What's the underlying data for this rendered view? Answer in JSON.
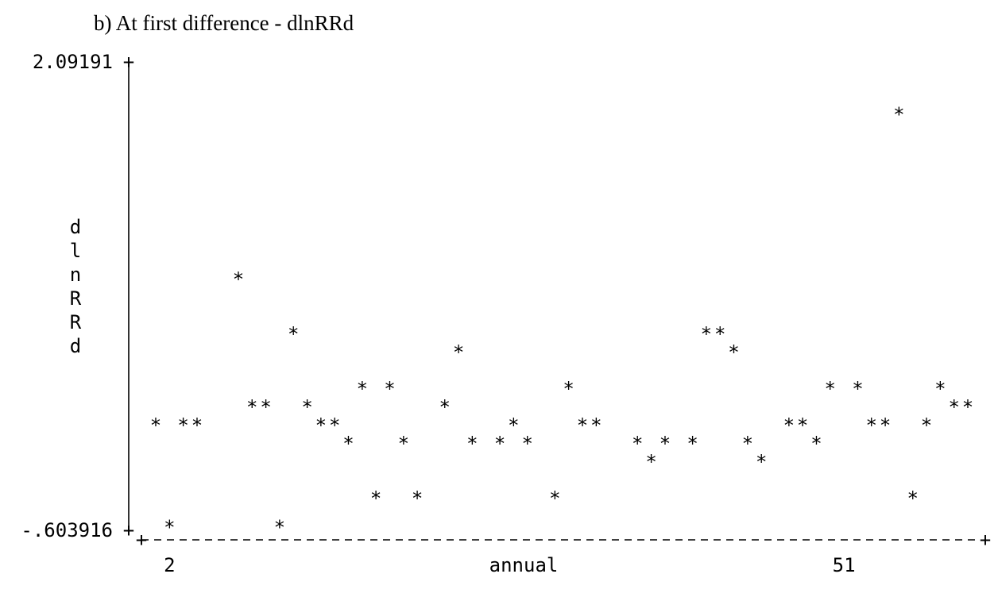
{
  "caption": "b)  At first difference - dlnRRd",
  "chart_data": {
    "type": "scatter",
    "title": "",
    "xlabel": "annual",
    "ylabel": "dlnRRd",
    "x_ticks": [
      2,
      51
    ],
    "y_ticks": [
      "2.09191",
      "-.603916"
    ],
    "xlim": [
      1,
      60
    ],
    "ylim": [
      -0.603916,
      2.09191
    ],
    "marker": "*",
    "grid": false,
    "legend": "none",
    "points": [
      {
        "x": 1,
        "y": 0.048
      },
      {
        "x": 2,
        "y": -0.56
      },
      {
        "x": 3,
        "y": 0.048
      },
      {
        "x": 4,
        "y": 0.048
      },
      {
        "x": 7,
        "y": 0.919
      },
      {
        "x": 8,
        "y": 0.157
      },
      {
        "x": 9,
        "y": 0.157
      },
      {
        "x": 10,
        "y": -0.56
      },
      {
        "x": 11,
        "y": 0.593
      },
      {
        "x": 12,
        "y": 0.157
      },
      {
        "x": 13,
        "y": 0.048
      },
      {
        "x": 14,
        "y": 0.048
      },
      {
        "x": 15,
        "y": -0.06
      },
      {
        "x": 16,
        "y": 0.266
      },
      {
        "x": 17,
        "y": -0.386
      },
      {
        "x": 18,
        "y": 0.266
      },
      {
        "x": 19,
        "y": -0.06
      },
      {
        "x": 20,
        "y": -0.386
      },
      {
        "x": 22,
        "y": 0.157
      },
      {
        "x": 23,
        "y": 0.484
      },
      {
        "x": 24,
        "y": -0.06
      },
      {
        "x": 26,
        "y": -0.06
      },
      {
        "x": 27,
        "y": 0.048
      },
      {
        "x": 28,
        "y": -0.06
      },
      {
        "x": 30,
        "y": -0.386
      },
      {
        "x": 31,
        "y": 0.266
      },
      {
        "x": 32,
        "y": 0.048
      },
      {
        "x": 33,
        "y": 0.048
      },
      {
        "x": 36,
        "y": -0.06
      },
      {
        "x": 37,
        "y": -0.169
      },
      {
        "x": 38,
        "y": -0.06
      },
      {
        "x": 40,
        "y": -0.06
      },
      {
        "x": 41,
        "y": 0.593
      },
      {
        "x": 42,
        "y": 0.593
      },
      {
        "x": 43,
        "y": 0.484
      },
      {
        "x": 44,
        "y": -0.06
      },
      {
        "x": 45,
        "y": -0.169
      },
      {
        "x": 47,
        "y": 0.048
      },
      {
        "x": 48,
        "y": 0.048
      },
      {
        "x": 49,
        "y": -0.06
      },
      {
        "x": 50,
        "y": 0.266
      },
      {
        "x": 52,
        "y": 0.266
      },
      {
        "x": 53,
        "y": 0.048
      },
      {
        "x": 54,
        "y": 0.048
      },
      {
        "x": 55,
        "y": 1.9
      },
      {
        "x": 56,
        "y": -0.386
      },
      {
        "x": 57,
        "y": 0.048
      },
      {
        "x": 58,
        "y": 0.266
      },
      {
        "x": 59,
        "y": 0.157
      },
      {
        "x": 60,
        "y": 0.157
      }
    ]
  }
}
